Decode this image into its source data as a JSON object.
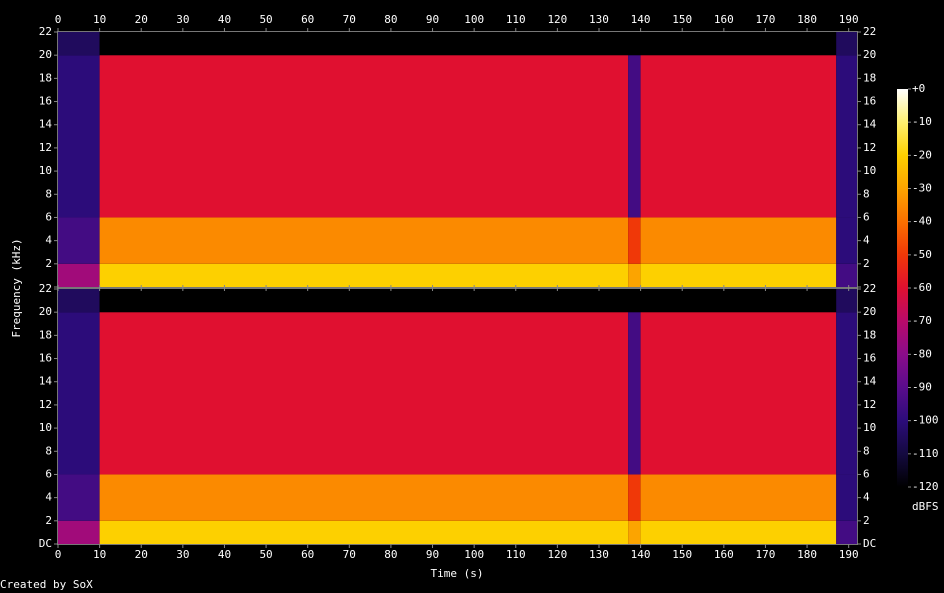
{
  "chart_data": {
    "type": "heatmap",
    "xlabel": "Time (s)",
    "ylabel": "Frequency (kHz)",
    "xlim": [
      0,
      192
    ],
    "xticks": [
      0,
      10,
      20,
      30,
      40,
      50,
      60,
      70,
      80,
      90,
      100,
      110,
      120,
      130,
      140,
      150,
      160,
      170,
      180,
      190
    ],
    "ylim": [
      0,
      22
    ],
    "yticks": [
      {
        "value": 0,
        "label": "DC"
      },
      2,
      4,
      6,
      8,
      10,
      12,
      14,
      16,
      18,
      20,
      22
    ],
    "xbins": [
      0,
      10,
      137,
      140,
      187,
      192
    ],
    "ybins": [
      0,
      2,
      6,
      20,
      22
    ],
    "channels": [
      {
        "values": [
          [
            -75,
            -20,
            -30,
            -20,
            -95
          ],
          [
            -95,
            -35,
            -50,
            -35,
            -100
          ],
          [
            -100,
            -60,
            -95,
            -60,
            -100
          ],
          [
            -105,
            -120,
            -120,
            -120,
            -105
          ]
        ]
      },
      {
        "values": [
          [
            -75,
            -20,
            -30,
            -20,
            -95
          ],
          [
            -95,
            -35,
            -50,
            -35,
            -100
          ],
          [
            -100,
            -60,
            -95,
            -60,
            -100
          ],
          [
            -105,
            -120,
            -120,
            -120,
            -105
          ]
        ]
      }
    ],
    "clim": [
      -120,
      0
    ],
    "colorscale": [
      "#000000",
      "#140a40",
      "#2c0c7a",
      "#5a0c8c",
      "#8a0c8a",
      "#b80a6a",
      "#e01030",
      "#f03808",
      "#fa7000",
      "#fca400",
      "#fdd000",
      "#fef070",
      "#ffffff"
    ],
    "cticks": [
      {
        "value": 0,
        "label": "+0"
      },
      -10,
      -20,
      -30,
      -40,
      -50,
      -60,
      -70,
      -80,
      -90,
      -100,
      -110,
      -120
    ],
    "clabel": "dBFS",
    "footer": "Created by SoX"
  }
}
